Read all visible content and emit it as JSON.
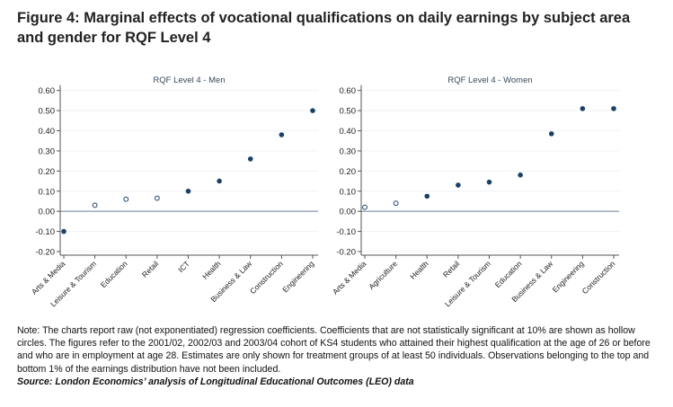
{
  "title": "Figure 4: Marginal effects of vocational qualifications on daily earnings by subject area and gender for RQF Level 4",
  "chart_data": [
    {
      "type": "scatter",
      "title": "RQF Level 4 - Men",
      "xlabel": "",
      "ylabel": "",
      "ylim": [
        -0.2,
        0.6
      ],
      "yticks": [
        "-0.20",
        "-0.10",
        "0.00",
        "0.10",
        "0.20",
        "0.30",
        "0.40",
        "0.50",
        "0.60"
      ],
      "categories": [
        "Arts & Media",
        "Leisure & Tourism",
        "Education",
        "Retail",
        "ICT",
        "Health",
        "Business & Law",
        "Construction",
        "Engineering"
      ],
      "values": [
        -0.1,
        0.03,
        0.06,
        0.065,
        0.1,
        0.15,
        0.26,
        0.38,
        0.5
      ],
      "significant": [
        true,
        false,
        false,
        false,
        true,
        true,
        true,
        true,
        true
      ]
    },
    {
      "type": "scatter",
      "title": "RQF Level 4 - Women",
      "xlabel": "",
      "ylabel": "",
      "ylim": [
        -0.2,
        0.6
      ],
      "yticks": [
        "-0.20",
        "-0.10",
        "0.00",
        "0.10",
        "0.20",
        "0.30",
        "0.40",
        "0.50",
        "0.60"
      ],
      "categories": [
        "Arts & Media",
        "Agriculture",
        "Health",
        "Retail",
        "Leisure & Tourism",
        "Education",
        "Business & Law",
        "Engineering",
        "Construction"
      ],
      "values": [
        0.02,
        0.04,
        0.075,
        0.13,
        0.145,
        0.18,
        0.385,
        0.51,
        0.51
      ],
      "significant": [
        false,
        false,
        true,
        true,
        true,
        true,
        true,
        true,
        true
      ]
    }
  ],
  "colors": {
    "marker": "#1a4066",
    "zero_line": "#8fa3b5",
    "grid": "#eef3f5",
    "axis": "#555555"
  },
  "note": "Note: The charts report raw (not exponentiated) regression coefficients. Coefficients that are not statistically significant at 10% are shown as hollow circles. The figures refer to the 2001/02, 2002/03 and 2003/04 cohort of KS4 students who attained their highest qualification at the age of 26 or before and who are in employment at age 28. Estimates are only shown for treatment groups of at least 50 individuals. Observations belonging to the top and bottom 1% of the earnings distribution have not been included.",
  "source": "Source: London Economics’ analysis of Longitudinal Educational Outcomes (LEO) data"
}
